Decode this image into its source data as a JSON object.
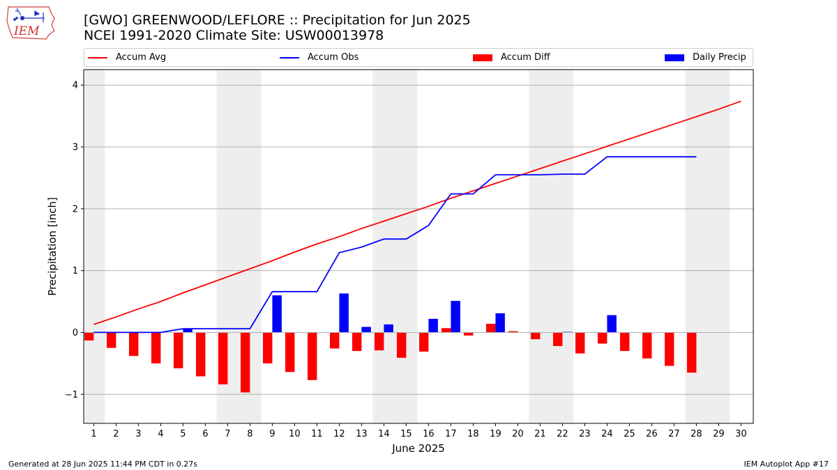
{
  "logo": {
    "text": "IEM",
    "icon": "iowa-state-weather-logo"
  },
  "title": {
    "line1": "[GWO] GREENWOOD/LEFLORE :: Precipitation for Jun 2025",
    "line2": "NCEI 1991-2020 Climate Site: USW00013978"
  },
  "legend": {
    "accum_avg": "Accum Avg",
    "accum_obs": "Accum Obs",
    "accum_diff": "Accum Diff",
    "daily_precip": "Daily Precip"
  },
  "colors": {
    "avg": "#ff0000",
    "obs": "#0000ff",
    "diff": "#ff0000",
    "daily": "#0000ff",
    "weekend": "#eeeeee",
    "grid": "#b0b0b0"
  },
  "footer": {
    "generated": "Generated at 28 Jun 2025 11:44 PM CDT in 0.27s",
    "app": "IEM Autoplot App #17"
  },
  "chart_data": {
    "type": "bar",
    "xlabel": "June 2025",
    "ylabel": "Precipitation [inch]",
    "ylim": [
      -1.47,
      4.25
    ],
    "yticks": [
      -1,
      0,
      1,
      2,
      3,
      4
    ],
    "ytick_labels": [
      "−1",
      "0",
      "1",
      "2",
      "3",
      "4"
    ],
    "xlim": [
      0.55,
      30.55
    ],
    "grid": "horizontal",
    "legend_position": "top",
    "days": [
      1,
      2,
      3,
      4,
      5,
      6,
      7,
      8,
      9,
      10,
      11,
      12,
      13,
      14,
      15,
      16,
      17,
      18,
      19,
      20,
      21,
      22,
      23,
      24,
      25,
      26,
      27,
      28,
      29,
      30
    ],
    "weekend_spans": [
      [
        0.5,
        1.5
      ],
      [
        6.5,
        8.5
      ],
      [
        13.5,
        15.5
      ],
      [
        20.5,
        22.5
      ],
      [
        27.5,
        29.5
      ]
    ],
    "series": [
      {
        "name": "Accum Avg",
        "kind": "line",
        "values": [
          0.13,
          0.25,
          0.38,
          0.5,
          0.64,
          0.77,
          0.9,
          1.03,
          1.16,
          1.3,
          1.43,
          1.55,
          1.68,
          1.8,
          1.92,
          2.04,
          2.17,
          2.29,
          2.41,
          2.53,
          2.65,
          2.77,
          2.89,
          3.01,
          3.13,
          3.25,
          3.37,
          3.49,
          3.61,
          3.74
        ]
      },
      {
        "name": "Accum Obs",
        "kind": "line",
        "values": [
          0.0,
          0.0,
          0.0,
          0.0,
          0.06,
          0.06,
          0.06,
          0.06,
          0.66,
          0.66,
          0.66,
          1.29,
          1.38,
          1.51,
          1.51,
          1.73,
          2.24,
          2.24,
          2.55,
          2.55,
          2.55,
          2.56,
          2.56,
          2.84,
          2.84,
          2.84,
          2.84,
          2.84
        ]
      },
      {
        "name": "Accum Diff",
        "kind": "bar",
        "values": [
          -0.13,
          -0.25,
          -0.38,
          -0.5,
          -0.58,
          -0.71,
          -0.84,
          -0.97,
          -0.5,
          -0.64,
          -0.77,
          -0.26,
          -0.3,
          -0.29,
          -0.41,
          -0.31,
          0.07,
          -0.05,
          0.14,
          0.02,
          -0.11,
          -0.22,
          -0.34,
          -0.18,
          -0.3,
          -0.42,
          -0.54,
          -0.65
        ]
      },
      {
        "name": "Daily Precip",
        "kind": "bar",
        "values": [
          0,
          0,
          0,
          0,
          0.06,
          0,
          0,
          0,
          0.6,
          0,
          0,
          0.63,
          0.09,
          0.13,
          0,
          0.22,
          0.51,
          0,
          0.31,
          0,
          0,
          0.01,
          0,
          0.28,
          0,
          0,
          0,
          0
        ]
      }
    ]
  }
}
